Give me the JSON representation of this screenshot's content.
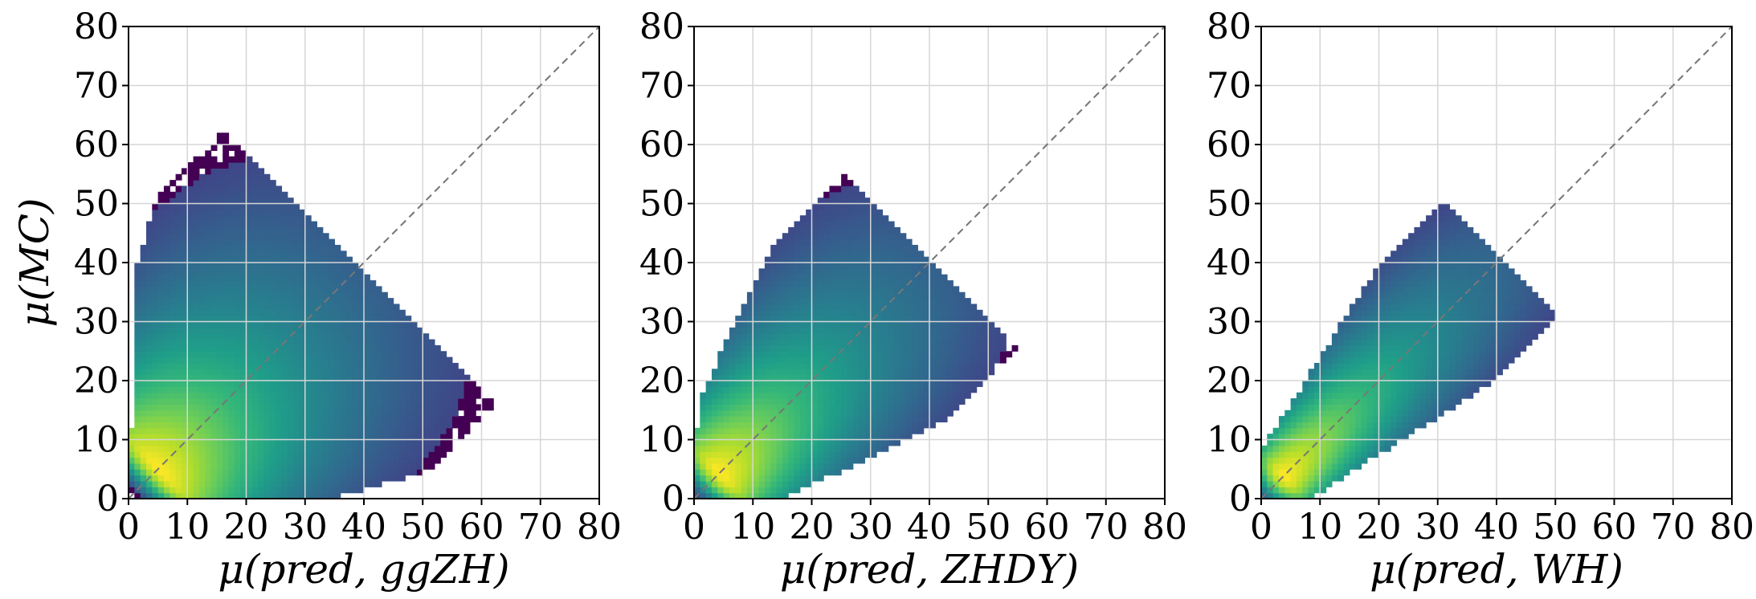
{
  "chart_data": [
    {
      "type": "heatmap",
      "xlabel": "μ(pred, ggZH)",
      "ylabel": "μ(MC)",
      "xlim": [
        0,
        80
      ],
      "ylim": [
        0,
        80
      ],
      "xticks": [
        0,
        10,
        20,
        30,
        40,
        50,
        60,
        70,
        80
      ],
      "yticks": [
        0,
        10,
        20,
        30,
        40,
        50,
        60,
        70,
        80
      ],
      "grid": true,
      "reference_line": "y = x (dashed gray)",
      "colormap": "viridis",
      "density_model": {
        "peak": [
          5.5,
          5
        ],
        "spread_along_diagonal": 14,
        "spread_perpendicular": 6.5,
        "max_extent": 76,
        "perp_extent": 22
      }
    },
    {
      "type": "heatmap",
      "xlabel": "μ(pred, ZHDY)",
      "ylabel": "",
      "xlim": [
        0,
        80
      ],
      "ylim": [
        0,
        80
      ],
      "xticks": [
        0,
        10,
        20,
        30,
        40,
        50,
        60,
        70,
        80
      ],
      "yticks": [
        0,
        10,
        20,
        30,
        40,
        50,
        60,
        70,
        80
      ],
      "grid": true,
      "reference_line": "y = x (dashed gray)",
      "colormap": "viridis",
      "density_model": {
        "peak": [
          5,
          4
        ],
        "spread_along_diagonal": 15,
        "spread_perpendicular": 4.5,
        "max_extent": 78,
        "perp_extent": 14
      }
    },
    {
      "type": "heatmap",
      "xlabel": "μ(pred, WH)",
      "ylabel": "",
      "xlim": [
        0,
        80
      ],
      "ylim": [
        0,
        80
      ],
      "xticks": [
        0,
        10,
        20,
        30,
        40,
        50,
        60,
        70,
        80
      ],
      "yticks": [
        0,
        10,
        20,
        30,
        40,
        50,
        60,
        70,
        80
      ],
      "grid": true,
      "reference_line": "y = x (dashed gray)",
      "colormap": "viridis",
      "density_model": {
        "peak": [
          4,
          4
        ],
        "spread_along_diagonal": 16,
        "spread_perpendicular": 3.0,
        "max_extent": 79,
        "perp_extent": 9
      }
    }
  ],
  "colors": {
    "viridis": [
      "#440154",
      "#482878",
      "#3e4989",
      "#31688e",
      "#26828e",
      "#1f9e89",
      "#35b779",
      "#6ece58",
      "#b5de2b",
      "#fde725"
    ],
    "diagonal": "#777777",
    "grid": "#d6d6d6"
  }
}
